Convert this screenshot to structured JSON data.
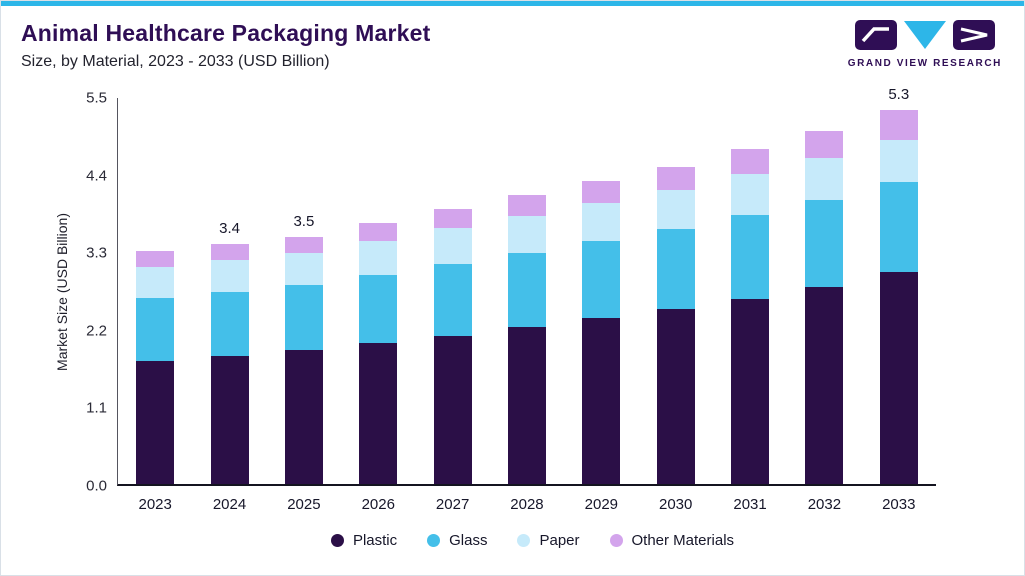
{
  "page": {
    "header": {
      "title": "Animal Healthcare Packaging Market",
      "subtitle": "Size, by Material, 2023 - 2033 (USD Billion)"
    },
    "logo": {
      "text": "GRAND VIEW RESEARCH"
    },
    "colors": {
      "accent_top_bar": "#2db6e8",
      "title_purple": "#2f0e55"
    }
  },
  "chart_data": {
    "type": "bar",
    "stacked": true,
    "title": "Animal Healthcare Packaging Market",
    "subtitle": "Size, by Material, 2023 - 2033 (USD Billion)",
    "xlabel": "",
    "ylabel": "Market Size (USD Billion)",
    "ylim": [
      0,
      5.5
    ],
    "yticks": [
      0,
      1.1,
      2.2,
      3.3,
      4.4,
      5.5
    ],
    "grid": false,
    "legend_position": "bottom",
    "categories": [
      "2023",
      "2024",
      "2025",
      "2026",
      "2027",
      "2028",
      "2029",
      "2030",
      "2031",
      "2032",
      "2033"
    ],
    "series": [
      {
        "name": "Plastic",
        "color": "#2b0f47",
        "values": [
          1.75,
          1.82,
          1.9,
          2.0,
          2.1,
          2.22,
          2.35,
          2.48,
          2.63,
          2.8,
          3.0
        ]
      },
      {
        "name": "Glass",
        "color": "#44bfe9",
        "values": [
          0.88,
          0.9,
          0.92,
          0.97,
          1.02,
          1.06,
          1.1,
          1.14,
          1.19,
          1.23,
          1.28
        ]
      },
      {
        "name": "Paper",
        "color": "#c6eafa",
        "values": [
          0.45,
          0.46,
          0.45,
          0.48,
          0.51,
          0.52,
          0.53,
          0.55,
          0.57,
          0.59,
          0.6
        ]
      },
      {
        "name": "Other Materials",
        "color": "#d3a4ec",
        "values": [
          0.22,
          0.22,
          0.23,
          0.25,
          0.27,
          0.3,
          0.32,
          0.33,
          0.36,
          0.38,
          0.42
        ]
      }
    ],
    "totals": [
      3.3,
      3.4,
      3.5,
      3.7,
      3.9,
      4.1,
      4.3,
      4.5,
      4.75,
      5.0,
      5.3
    ],
    "bar_value_labels": {
      "2024": "3.4",
      "2025": "3.5",
      "2033": "5.3"
    }
  }
}
